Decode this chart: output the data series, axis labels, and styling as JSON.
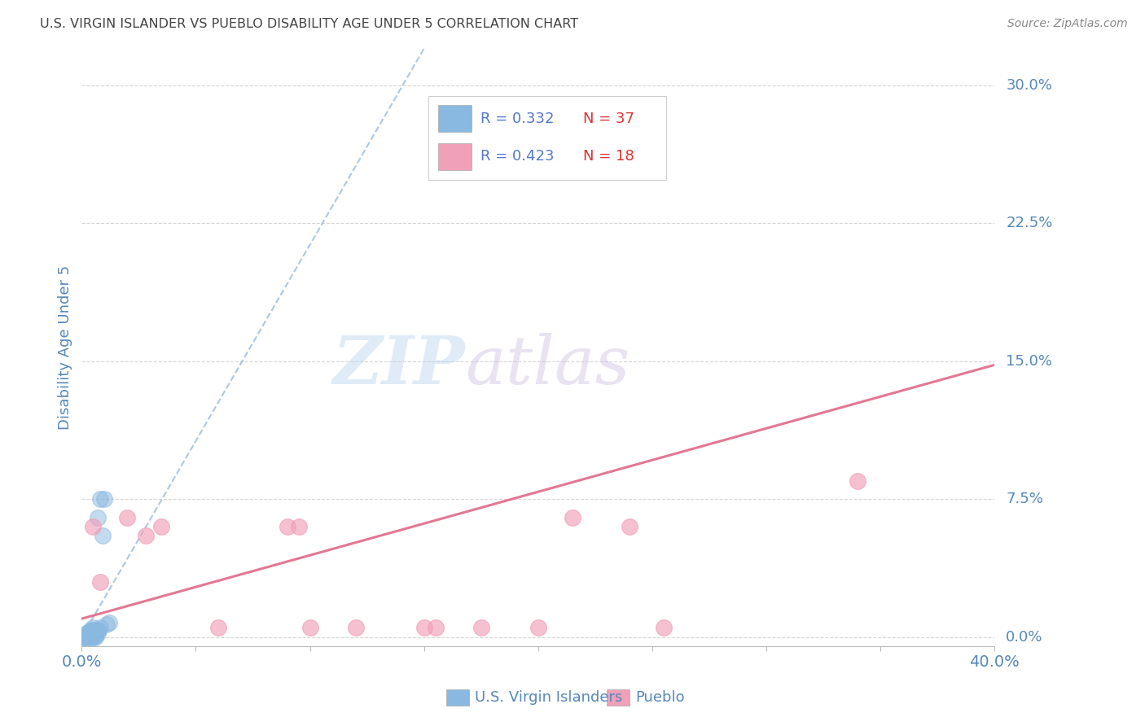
{
  "title": "U.S. VIRGIN ISLANDER VS PUEBLO DISABILITY AGE UNDER 5 CORRELATION CHART",
  "source": "Source: ZipAtlas.com",
  "ylabel": "Disability Age Under 5",
  "xlim": [
    0.0,
    0.4
  ],
  "ylim": [
    -0.005,
    0.32
  ],
  "xtick_vals": [
    0.0,
    0.05,
    0.1,
    0.15,
    0.2,
    0.25,
    0.3,
    0.35,
    0.4
  ],
  "ytick_vals": [
    0.0,
    0.075,
    0.15,
    0.225,
    0.3
  ],
  "ytick_labels": [
    "0.0%",
    "7.5%",
    "15.0%",
    "22.5%",
    "30.0%"
  ],
  "blue_scatter_x": [
    0.0005,
    0.001,
    0.001,
    0.0015,
    0.002,
    0.002,
    0.002,
    0.003,
    0.003,
    0.003,
    0.003,
    0.004,
    0.004,
    0.004,
    0.004,
    0.004,
    0.005,
    0.005,
    0.005,
    0.005,
    0.005,
    0.005,
    0.006,
    0.006,
    0.006,
    0.006,
    0.006,
    0.007,
    0.007,
    0.007,
    0.007,
    0.008,
    0.008,
    0.009,
    0.01,
    0.011,
    0.012
  ],
  "blue_scatter_y": [
    0.0,
    0.0,
    0.0,
    0.0,
    0.0,
    0.001,
    0.002,
    0.0,
    0.001,
    0.002,
    0.003,
    0.0,
    0.001,
    0.002,
    0.003,
    0.004,
    0.0,
    0.001,
    0.002,
    0.003,
    0.004,
    0.005,
    0.0,
    0.001,
    0.002,
    0.003,
    0.004,
    0.002,
    0.003,
    0.004,
    0.065,
    0.005,
    0.075,
    0.055,
    0.075,
    0.007,
    0.008
  ],
  "pink_scatter_x": [
    0.005,
    0.008,
    0.02,
    0.028,
    0.035,
    0.06,
    0.09,
    0.095,
    0.1,
    0.15,
    0.175,
    0.2,
    0.215,
    0.24,
    0.255,
    0.34,
    0.12,
    0.155
  ],
  "pink_scatter_y": [
    0.06,
    0.03,
    0.065,
    0.055,
    0.06,
    0.005,
    0.06,
    0.06,
    0.005,
    0.005,
    0.005,
    0.005,
    0.065,
    0.06,
    0.005,
    0.085,
    0.005,
    0.005
  ],
  "blue_line_x": [
    0.0,
    0.15
  ],
  "blue_line_y": [
    0.0,
    0.32
  ],
  "pink_line_x": [
    0.0,
    0.4
  ],
  "pink_line_y": [
    0.01,
    0.148
  ],
  "scatter_color_blue": "#89b8e0",
  "scatter_color_pink": "#f0a0b8",
  "trend_color_blue": "#8ab0d8",
  "trend_color_pink": "#e06888",
  "background_color": "#ffffff",
  "grid_color": "#cccccc",
  "title_color": "#444444",
  "axis_label_color": "#5588bb",
  "watermark_zip_color": "#c5dff5",
  "watermark_atlas_color": "#d8c8e8",
  "legend_R_color": "#5577cc",
  "legend_N_color": "#dd3333"
}
